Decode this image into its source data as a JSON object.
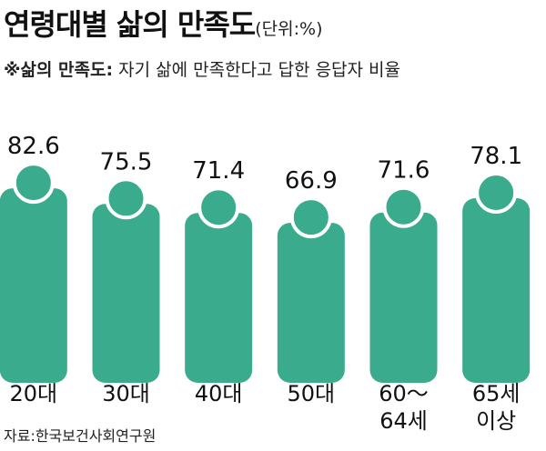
{
  "chart_data": {
    "type": "bar",
    "title": "연령대별 삶의 만족도",
    "subtitle": "(단위:%)",
    "note_label": "※삶의 만족도:",
    "note_text": "자기 삶에 만족한다고 답한 응답자 비율",
    "source": "자료:한국보건사회연구원",
    "categories": [
      "20대",
      "30대",
      "40대",
      "50대",
      "60～64세",
      "65세 이상"
    ],
    "values": [
      82.6,
      75.5,
      71.4,
      66.9,
      71.6,
      78.1
    ],
    "color": "#3aab8c",
    "ylim": [
      0,
      100
    ]
  }
}
